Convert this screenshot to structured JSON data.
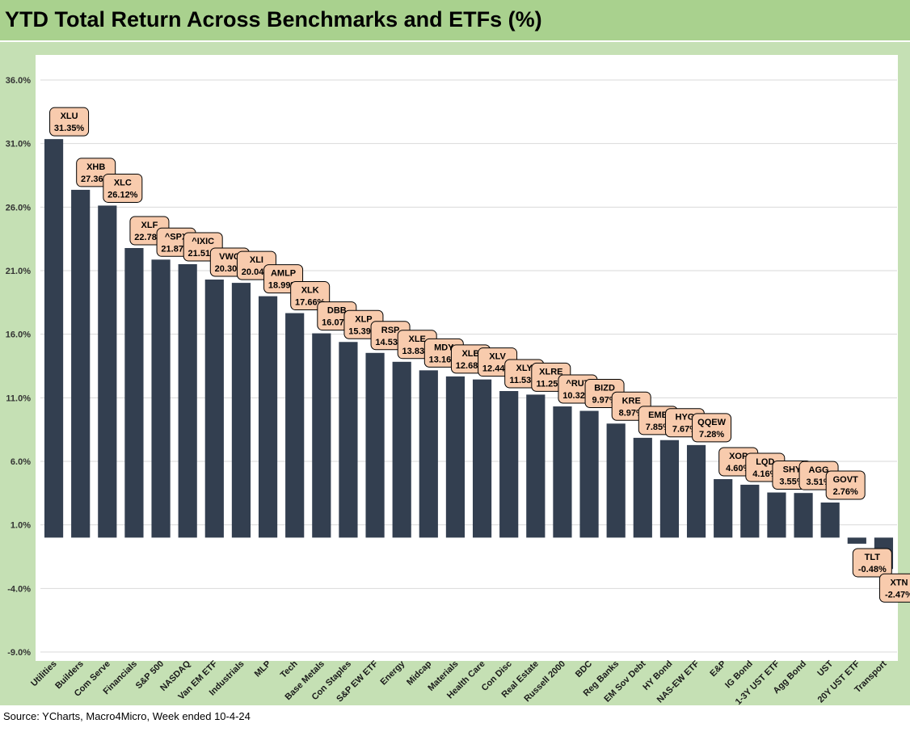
{
  "title": "YTD Total Return Across Benchmarks and ETFs (%)",
  "source": "Source: YCharts, Macro4Micro, Week ended 10-4-24",
  "colors": {
    "bar": "#333f50",
    "label_fill": "#f8cbad",
    "frame": "#c5e0b4",
    "title_bar": "#a9d18e",
    "grid": "#d9d9d9"
  },
  "chart_data": {
    "type": "bar",
    "title": "YTD Total Return Across Benchmarks and ETFs (%)",
    "xlabel": "",
    "ylabel": "",
    "ylim": [
      -9.0,
      36.0
    ],
    "yticks": [
      -9.0,
      -4.0,
      1.0,
      6.0,
      11.0,
      16.0,
      21.0,
      26.0,
      31.0,
      36.0
    ],
    "ytick_labels": [
      "-9.0%",
      "-4.0%",
      "1.0%",
      "6.0%",
      "11.0%",
      "16.0%",
      "21.0%",
      "26.0%",
      "31.0%",
      "36.0%"
    ],
    "grid": true,
    "baseline": 0,
    "categories": [
      "Utilities",
      "Builders",
      "Com Serve",
      "Financials",
      "S&P 500",
      "NASDAQ",
      "Van EM ETF",
      "Industrials",
      "MLP",
      "Tech",
      "Base Metals",
      "Con Staples",
      "S&P EW ETF",
      "Energy",
      "Midcap",
      "Materials",
      "Health Care",
      "Con Disc",
      "Real Estate",
      "Russell 2000",
      "BDC",
      "Reg Banks",
      "EM Sov Debt",
      "HY Bond",
      "NAS-EW ETF",
      "E&P",
      "IG Bond",
      "1-3Y UST ETF",
      "Agg Bond",
      "UST",
      "20Y UST ETF",
      "Transport"
    ],
    "tickers": [
      "XLU",
      "XHB",
      "XLC",
      "XLF",
      "^SPX",
      "^IXIC",
      "VWO",
      "XLI",
      "AMLP",
      "XLK",
      "DBB",
      "XLP",
      "RSP",
      "XLE",
      "MDY",
      "XLB",
      "XLV",
      "XLY",
      "XLRE",
      "^RUT",
      "BIZD",
      "KRE",
      "EMB",
      "HYG",
      "QQEW",
      "XOP",
      "LQD",
      "SHY",
      "AGG",
      "GOVT",
      "TLT",
      "XTN"
    ],
    "values": [
      31.35,
      27.36,
      26.12,
      22.78,
      21.87,
      21.51,
      20.3,
      20.04,
      18.99,
      17.66,
      16.07,
      15.39,
      14.53,
      13.83,
      13.16,
      12.68,
      12.44,
      11.53,
      11.25,
      10.32,
      9.97,
      8.97,
      7.85,
      7.67,
      7.28,
      4.6,
      4.16,
      3.55,
      3.51,
      2.76,
      -0.48,
      -2.47
    ],
    "value_labels": [
      "31.35%",
      "27.36%",
      "26.12%",
      "22.78%",
      "21.87%",
      "21.51%",
      "20.30%",
      "20.04%",
      "18.99%",
      "17.66%",
      "16.07%",
      "15.39%",
      "14.53%",
      "13.83%",
      "13.16%",
      "12.68%",
      "12.44%",
      "11.53%",
      "11.25%",
      "10.32%",
      "9.97%",
      "8.97%",
      "7.85%",
      "7.67%",
      "7.28%",
      "4.60%",
      "4.16%",
      "3.55%",
      "3.51%",
      "2.76%",
      "-0.48%",
      "-2.47%"
    ]
  }
}
